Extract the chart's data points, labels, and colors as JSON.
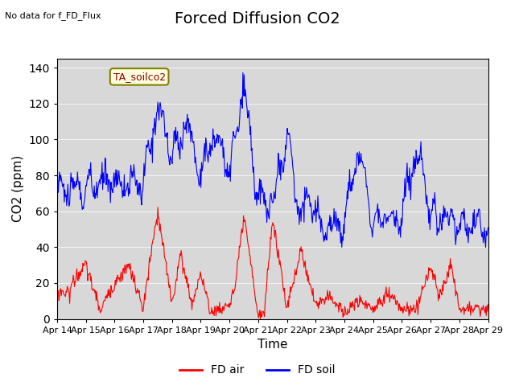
{
  "title": "Forced Diffusion CO2",
  "top_left_text": "No data for f_FD_Flux",
  "annotation_box": "TA_soilco2",
  "xlabel": "Time",
  "ylabel": "CO2 (ppm)",
  "ylim": [
    0,
    145
  ],
  "yticks": [
    0,
    20,
    40,
    60,
    80,
    100,
    120,
    140
  ],
  "xtick_labels": [
    "Apr 14",
    "Apr 15",
    "Apr 16",
    "Apr 17",
    "Apr 18",
    "Apr 19",
    "Apr 20",
    "Apr 21",
    "Apr 22",
    "Apr 23",
    "Apr 24",
    "Apr 25",
    "Apr 26",
    "Apr 27",
    "Apr 28",
    "Apr 29"
  ],
  "bg_color": "#e8e8e8",
  "plot_bg_color": "#d8d8d8",
  "legend_items": [
    {
      "label": "FD air",
      "color": "red"
    },
    {
      "label": "FD soil",
      "color": "blue"
    }
  ],
  "title_fontsize": 14,
  "axis_label_fontsize": 11
}
